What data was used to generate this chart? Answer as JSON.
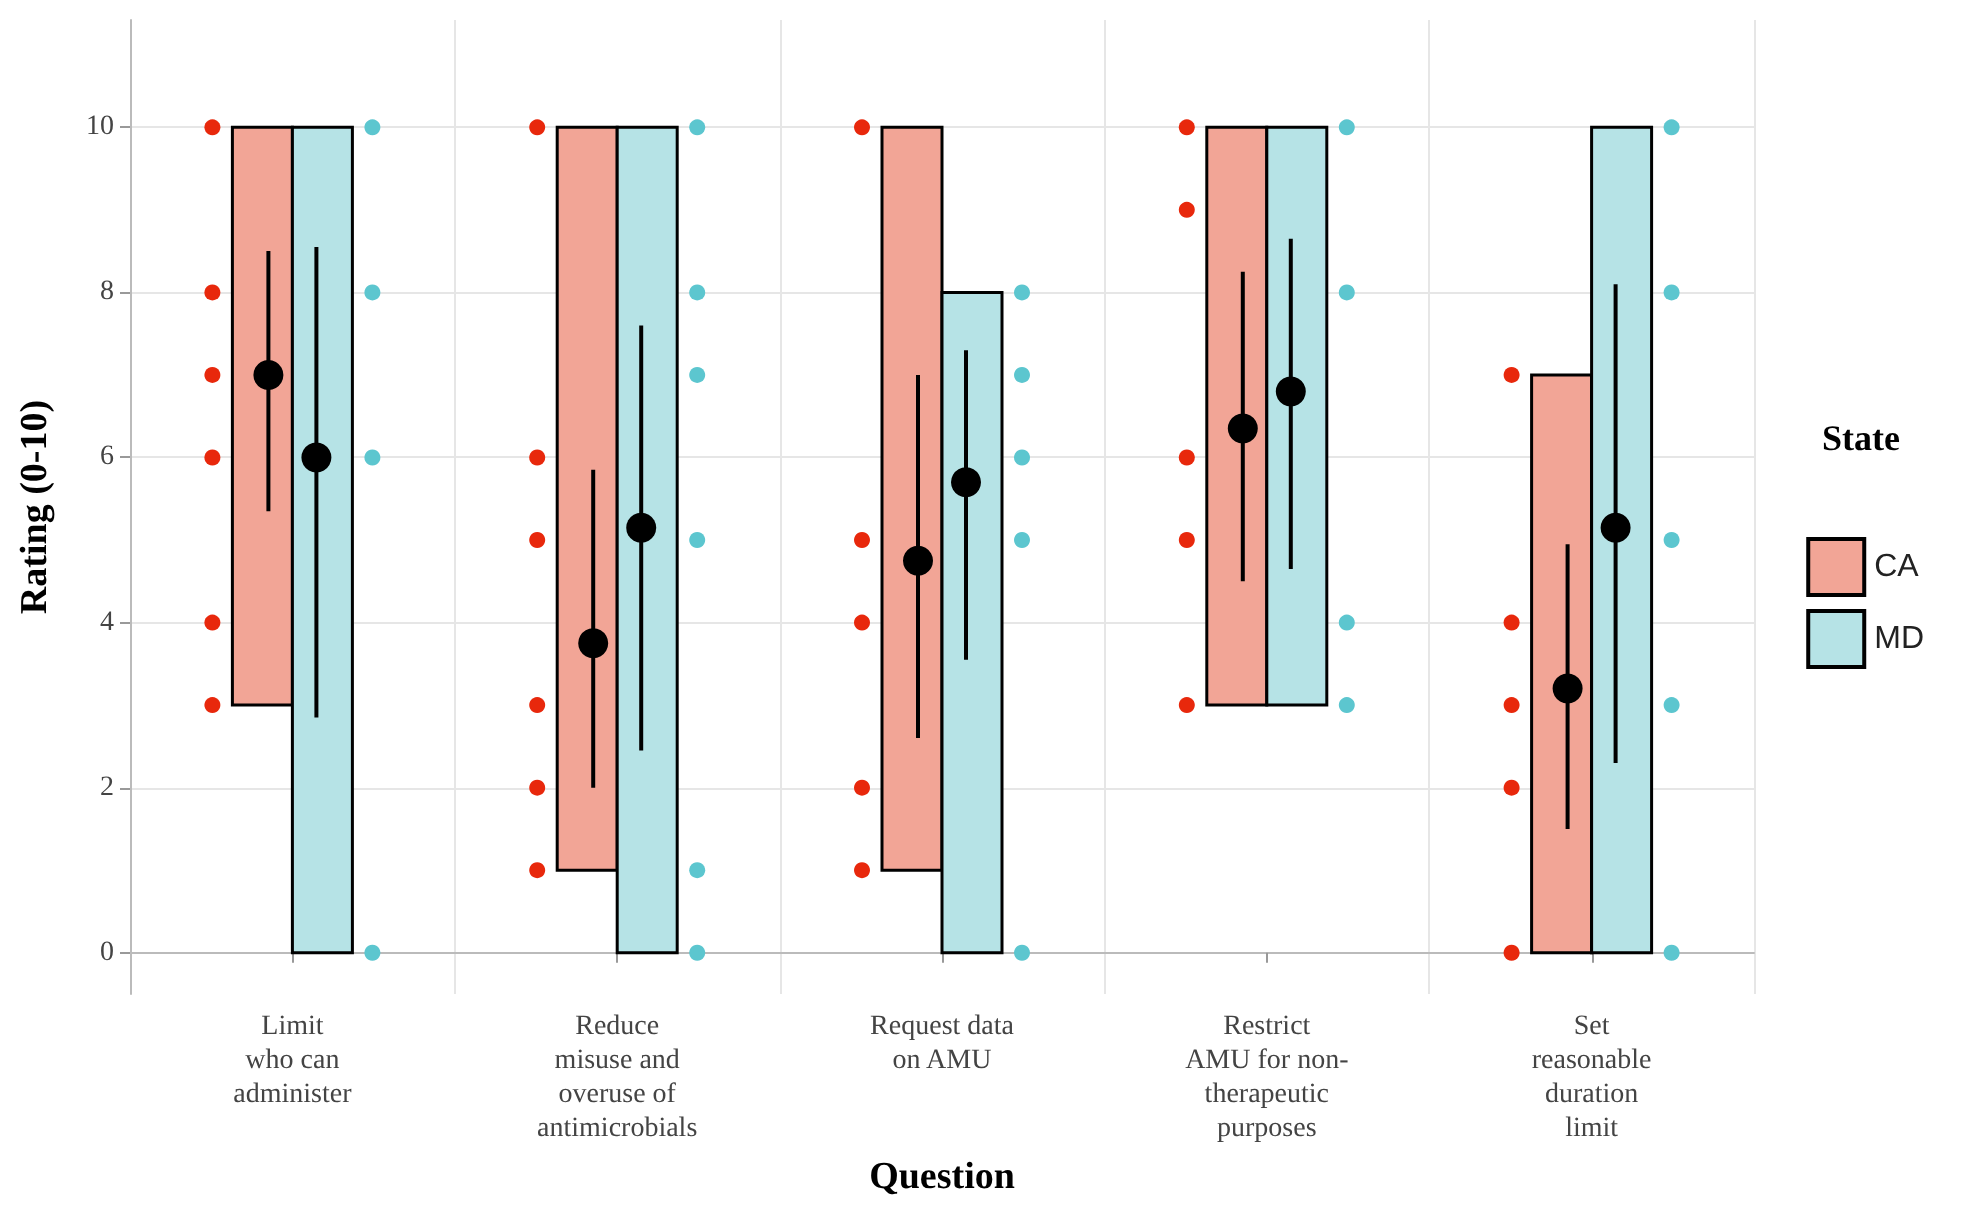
{
  "chart_data": {
    "type": "bar",
    "xlabel": "Question",
    "ylabel": "Rating (0-10)",
    "legend_title": "State",
    "legend": "right",
    "grid": true,
    "marker": "circle",
    "categories": [
      "Limit\nwho can\nadminister",
      "Reduce\nmisuse and\noveruse of\nantimicrobials",
      "Request data\non AMU",
      "Restrict\nAMU for non-\ntherapeutic\npurposes",
      "Set\nreasonable\nduration\nlimit"
    ],
    "ylim": [
      -0.5,
      11.3
    ],
    "yticks": [
      0,
      2,
      4,
      6,
      8,
      10
    ],
    "series": [
      {
        "name": "CA",
        "color": "#f2a596",
        "base": [
          3,
          1,
          1,
          3,
          0
        ],
        "values": [
          7,
          9,
          9,
          7,
          7
        ]
      },
      {
        "name": "MD",
        "color": "#b6e3e6",
        "base": [
          0,
          0,
          0,
          3,
          0
        ],
        "values": [
          10,
          10,
          8,
          7,
          10
        ]
      },
      {
        "type": "scatter",
        "color": "#e8280c",
        "x": [
          "Limit\nwho can\nadminister",
          "Limit\nwho can\nadminister",
          "Limit\nwho can\nadminister",
          "Limit\nwho can\nadminister",
          "Limit\nwho can\nadminister",
          "Limit\nwho can\nadminister",
          "Reduce\nmisuse and\noveruse of\nantimicrobials",
          "Reduce\nmisuse and\noveruse of\nantimicrobials",
          "Reduce\nmisuse and\noveruse of\nantimicrobials",
          "Reduce\nmisuse and\noveruse of\nantimicrobials",
          "Reduce\nmisuse and\noveruse of\nantimicrobials",
          "Reduce\nmisuse and\noveruse of\nantimicrobials",
          "Request data\non AMU",
          "Request data\non AMU",
          "Request data\non AMU",
          "Request data\non AMU",
          "Request data\non AMU",
          "Restrict\nAMU for non-\ntherapeutic\npurposes",
          "Restrict\nAMU for non-\ntherapeutic\npurposes",
          "Restrict\nAMU for non-\ntherapeutic\npurposes",
          "Restrict\nAMU for non-\ntherapeutic\npurposes",
          "Restrict\nAMU for non-\ntherapeutic\npurposes",
          "Set\nreasonable\nduration\nlimit",
          "Set\nreasonable\nduration\nlimit",
          "Set\nreasonable\nduration\nlimit",
          "Set\nreasonable\nduration\nlimit",
          "Set\nreasonable\nduration\nlimit"
        ],
        "values": [
          10,
          8,
          7,
          6,
          4,
          3,
          10,
          6,
          5,
          3,
          2,
          1,
          10,
          5,
          4,
          2,
          1,
          10,
          9,
          6,
          5,
          3,
          7,
          4,
          3,
          2,
          0
        ]
      },
      {
        "type": "scatter",
        "color": "#5cc6cf",
        "x": [
          "Limit\nwho can\nadminister",
          "Limit\nwho can\nadminister",
          "Limit\nwho can\nadminister",
          "Limit\nwho can\nadminister",
          "Reduce\nmisuse and\noveruse of\nantimicrobials",
          "Reduce\nmisuse and\noveruse of\nantimicrobials",
          "Reduce\nmisuse and\noveruse of\nantimicrobials",
          "Reduce\nmisuse and\noveruse of\nantimicrobials",
          "Reduce\nmisuse and\noveruse of\nantimicrobials",
          "Reduce\nmisuse and\noveruse of\nantimicrobials",
          "Request data\non AMU",
          "Request data\non AMU",
          "Request data\non AMU",
          "Request data\non AMU",
          "Request data\non AMU",
          "Restrict\nAMU for non-\ntherapeutic\npurposes",
          "Restrict\nAMU for non-\ntherapeutic\npurposes",
          "Restrict\nAMU for non-\ntherapeutic\npurposes",
          "Restrict\nAMU for non-\ntherapeutic\npurposes",
          "Set\nreasonable\nduration\nlimit",
          "Set\nreasonable\nduration\nlimit",
          "Set\nreasonable\nduration\nlimit",
          "Set\nreasonable\nduration\nlimit",
          "Set\nreasonable\nduration\nlimit"
        ],
        "values": [
          10,
          8,
          6,
          0,
          10,
          8,
          7,
          5,
          1,
          0,
          8,
          7,
          6,
          5,
          0,
          10,
          8,
          4,
          3,
          10,
          8,
          5,
          3,
          0
        ]
      },
      {
        "type": "scatter",
        "color": "#000000",
        "x": [
          "Limit\nwho can\nadminister",
          "Reduce\nmisuse and\noveruse of\nantimicrobials",
          "Request data\non AMU",
          "Restrict\nAMU for non-\ntherapeutic\npurposes",
          "Set\nreasonable\nduration\nlimit"
        ],
        "values": [
          7,
          3.75,
          4.75,
          6.35,
          3.2
        ],
        "errors": [
          [
            5.35,
            8.5
          ],
          [
            2,
            5.85
          ],
          [
            2.6,
            7
          ],
          [
            4.5,
            8.25
          ],
          [
            1.5,
            4.95
          ]
        ]
      },
      {
        "type": "scatter",
        "color": "#000000",
        "x": [
          "Limit\nwho can\nadminister",
          "Reduce\nmisuse and\noveruse of\nantimicrobials",
          "Request data\non AMU",
          "Restrict\nAMU for non-\ntherapeutic\npurposes",
          "Set\nreasonable\nduration\nlimit"
        ],
        "values": [
          6,
          5.15,
          5.7,
          6.8,
          5.15
        ],
        "errors": [
          [
            2.85,
            8.55
          ],
          [
            2.45,
            7.6
          ],
          [
            3.55,
            7.3
          ],
          [
            4.65,
            8.65
          ],
          [
            2.3,
            8.1
          ]
        ]
      }
    ]
  }
}
